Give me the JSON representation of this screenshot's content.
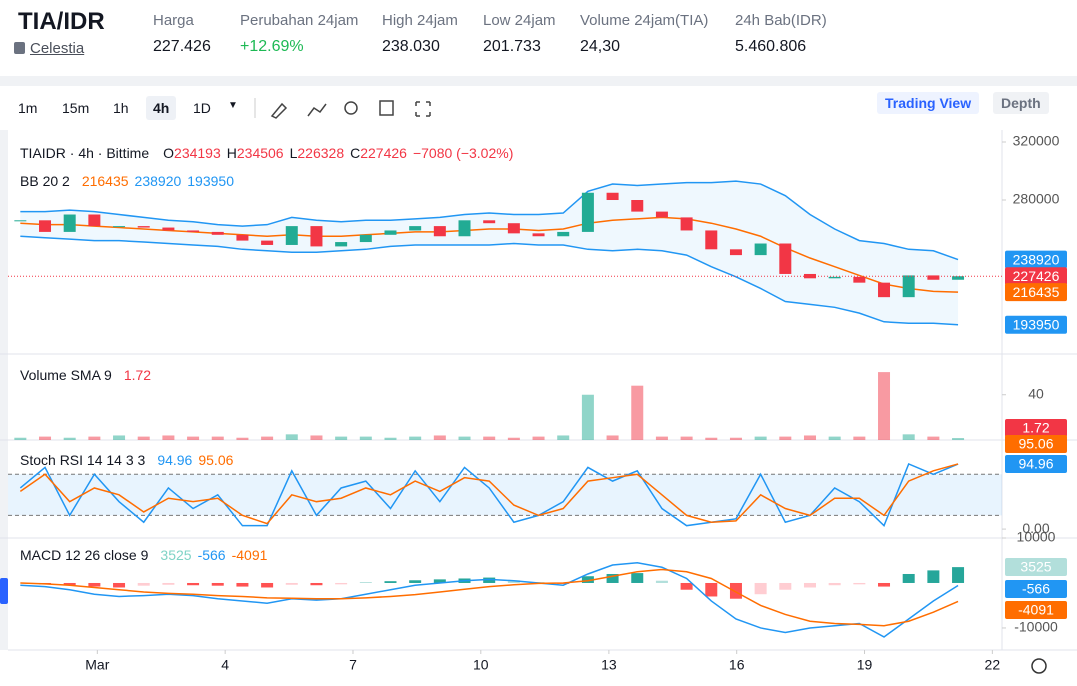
{
  "header": {
    "symbol": "TIA/IDR",
    "asset": "Celestia",
    "stats": [
      {
        "label": "Harga",
        "value": "227.426"
      },
      {
        "label": "Perubahan 24jam",
        "value": "+12.69%"
      },
      {
        "label": "High 24jam",
        "value": "238.030"
      },
      {
        "label": "Low 24jam",
        "value": "201.733"
      },
      {
        "label": "Volume 24jam(TIA)",
        "value": "24,30"
      },
      {
        "label": "24h Bab(IDR)",
        "value": "5.460.806"
      }
    ]
  },
  "toolbar": {
    "intervals": [
      "1m",
      "15m",
      "1h",
      "4h",
      "1D"
    ],
    "active": "4h",
    "tabs": [
      "Trading View",
      "Depth"
    ]
  },
  "chart_data": [
    {
      "type": "candlestick",
      "title": "TIAIDR · 4h · Bittime",
      "ohlc_legend": [
        {
          "label": "O",
          "value": "234193"
        },
        {
          "label": "H",
          "value": "234506"
        },
        {
          "label": "L",
          "value": "226328"
        },
        {
          "label": "C",
          "value": "227426"
        }
      ],
      "change": "−7080 (−3.02%)",
      "indicator": "BB 20 2",
      "ylim": [
        173800,
        326900
      ],
      "yticks": [
        320000,
        280000
      ],
      "up_color": "#22ab94",
      "down_color": "#f23645",
      "close": [
        266000,
        258000,
        270000,
        262000,
        262000,
        261000,
        259000,
        258000,
        256000,
        252000,
        249000,
        262000,
        248000,
        251000,
        256000,
        259000,
        262000,
        255000,
        266000,
        264000,
        257000,
        255000,
        258000,
        285000,
        280000,
        272000,
        268000,
        259000,
        246000,
        242000,
        250000,
        229000,
        226000,
        227000,
        223000,
        213000,
        228000,
        225000,
        227426
      ],
      "series": [
        {
          "name": "BB upper",
          "color": "#2196f3",
          "values": [
            272000,
            272000,
            273000,
            272000,
            270000,
            268000,
            266000,
            265000,
            263000,
            262000,
            263000,
            268000,
            266000,
            265000,
            266000,
            266000,
            267000,
            268000,
            270000,
            271000,
            270000,
            270000,
            271000,
            286000,
            291000,
            290000,
            291000,
            292000,
            292000,
            293000,
            291000,
            283000,
            270000,
            260000,
            252000,
            250000,
            246000,
            245000,
            238920
          ]
        },
        {
          "name": "BB basis",
          "color": "#ff6d00",
          "values": [
            264000,
            263000,
            263000,
            262000,
            261000,
            260000,
            259000,
            258000,
            257000,
            256000,
            255000,
            256000,
            255000,
            255000,
            256000,
            257000,
            258000,
            258000,
            259000,
            260000,
            260000,
            259000,
            260000,
            264000,
            266000,
            267000,
            268000,
            267000,
            264000,
            260000,
            255000,
            247000,
            240000,
            234000,
            228000,
            222000,
            219000,
            217000,
            216435
          ]
        },
        {
          "name": "BB lower",
          "color": "#2196f3",
          "values": [
            255000,
            254000,
            253000,
            252000,
            252000,
            251000,
            250000,
            249000,
            248000,
            246000,
            245000,
            244000,
            244000,
            245000,
            246000,
            248000,
            249000,
            249000,
            249000,
            249000,
            250000,
            249000,
            249000,
            246000,
            245000,
            246000,
            245000,
            242000,
            234000,
            227000,
            219000,
            210000,
            208000,
            206000,
            202000,
            196000,
            195000,
            195000,
            193950
          ]
        }
      ]
    },
    {
      "type": "bar",
      "title": "Volume SMA 9",
      "ylim": [
        0,
        76
      ],
      "yticks": [
        40
      ],
      "up_color": "#22ab94",
      "down_color": "#f23645",
      "values": [
        2,
        3,
        2,
        3,
        4,
        3,
        4,
        3,
        3,
        2,
        3,
        5,
        4,
        3,
        3,
        2,
        3,
        4,
        3,
        3,
        2,
        3,
        4,
        40,
        4,
        48,
        3,
        3,
        2,
        2,
        3,
        3,
        4,
        3,
        3,
        60,
        5,
        3,
        1.72
      ]
    },
    {
      "type": "line",
      "title": "Stoch RSI 14 14 3 3",
      "ylim": [
        -13,
        130
      ],
      "yticks": [
        {
          "value": 0,
          "label": "0.00"
        }
      ],
      "band": [
        20,
        80
      ],
      "series": [
        {
          "name": "K",
          "color": "#2196f3",
          "values": [
            60,
            90,
            20,
            80,
            40,
            10,
            60,
            30,
            50,
            5,
            5,
            85,
            20,
            60,
            70,
            30,
            85,
            40,
            90,
            60,
            10,
            20,
            40,
            90,
            70,
            85,
            30,
            5,
            10,
            15,
            80,
            10,
            20,
            60,
            40,
            5,
            95,
            80,
            94.96
          ]
        },
        {
          "name": "D",
          "color": "#ff6d00",
          "values": [
            55,
            80,
            40,
            60,
            50,
            25,
            45,
            40,
            45,
            20,
            8,
            50,
            40,
            45,
            60,
            50,
            70,
            55,
            75,
            70,
            35,
            20,
            30,
            70,
            75,
            80,
            50,
            20,
            10,
            12,
            50,
            30,
            20,
            45,
            45,
            20,
            70,
            85,
            95.06
          ]
        }
      ]
    },
    {
      "type": "macd",
      "title": "MACD 12 26 close 9",
      "ylim": [
        -14900,
        10000
      ],
      "yticks": [
        10000,
        -10000
      ],
      "xlim": [
        -0.5,
        39.7
      ],
      "xticks": [
        {
          "value": 3.12,
          "label": "Mar"
        },
        {
          "value": 8.3,
          "label": "4"
        },
        {
          "value": 13.48,
          "label": "7"
        },
        {
          "value": 18.66,
          "label": "10"
        },
        {
          "value": 23.85,
          "label": "13"
        },
        {
          "value": 29.03,
          "label": "16"
        },
        {
          "value": 34.21,
          "label": "19"
        },
        {
          "value": 39.39,
          "label": "22"
        }
      ],
      "series": [
        {
          "name": "Histogram",
          "color": "#26a69a",
          "values": [
            0,
            -300,
            -500,
            -800,
            -1000,
            -600,
            -400,
            -500,
            -600,
            -800,
            -1000,
            -400,
            -500,
            -300,
            200,
            400,
            600,
            800,
            1000,
            1200,
            600,
            200,
            -200,
            1500,
            2000,
            2200,
            500,
            -1500,
            -3000,
            -3500,
            -2500,
            -1500,
            -1000,
            -500,
            -300,
            -800,
            2000,
            2800,
            3525
          ]
        },
        {
          "name": "MACD",
          "color": "#2196f3",
          "values": [
            -500,
            -800,
            -1500,
            -2500,
            -3000,
            -2800,
            -2500,
            -2800,
            -3500,
            -4000,
            -4500,
            -3500,
            -3800,
            -3500,
            -2500,
            -1500,
            -500,
            0,
            500,
            800,
            500,
            0,
            -500,
            2000,
            4000,
            4500,
            3500,
            1000,
            -4000,
            -8000,
            -10000,
            -11000,
            -10000,
            -9500,
            -9000,
            -12000,
            -8000,
            -4000,
            -566
          ]
        },
        {
          "name": "Signal",
          "color": "#ff6d00",
          "values": [
            0,
            -200,
            -500,
            -1000,
            -1500,
            -2000,
            -2300,
            -2500,
            -2800,
            -3000,
            -3300,
            -3400,
            -3500,
            -3500,
            -3300,
            -3000,
            -2600,
            -2000,
            -1400,
            -800,
            -400,
            -100,
            0,
            500,
            1500,
            2500,
            3000,
            2500,
            1000,
            -2000,
            -5000,
            -7000,
            -8500,
            -9000,
            -9200,
            -9500,
            -8500,
            -6500,
            -4091
          ]
        }
      ]
    }
  ]
}
